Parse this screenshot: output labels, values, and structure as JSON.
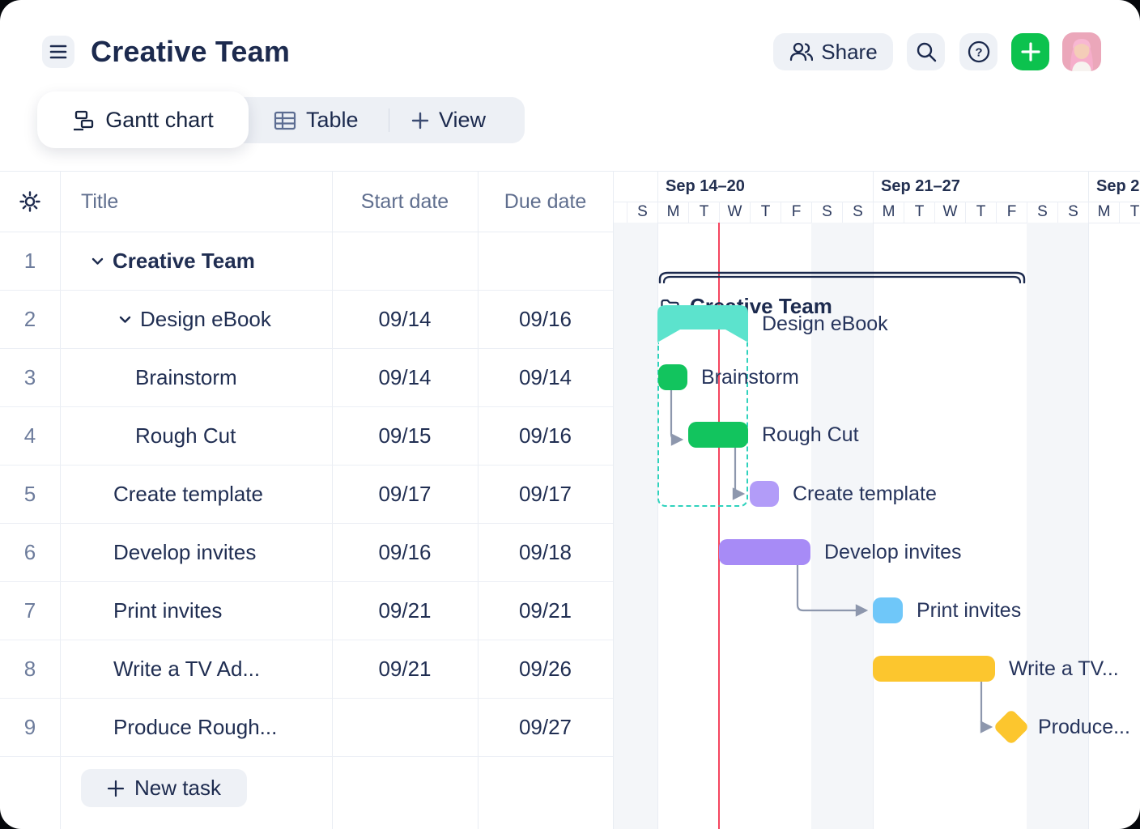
{
  "header": {
    "title": "Creative Team",
    "share_label": "Share"
  },
  "tabs": {
    "active_label": "Gantt chart",
    "table_label": "Table",
    "view_label": "View"
  },
  "table": {
    "columns": {
      "title": "Title",
      "start": "Start date",
      "due": "Due date"
    },
    "new_task_label": "New task",
    "rows": [
      {
        "num": "1",
        "title": "Creative Team",
        "indent": 0,
        "chevron": true,
        "bold": true,
        "start": "",
        "due": ""
      },
      {
        "num": "2",
        "title": "Design eBook",
        "indent": 1,
        "chevron": true,
        "bold": false,
        "start": "09/14",
        "due": "09/16"
      },
      {
        "num": "3",
        "title": "Brainstorm",
        "indent": 2,
        "chevron": false,
        "bold": false,
        "start": "09/14",
        "due": "09/14"
      },
      {
        "num": "4",
        "title": "Rough Cut",
        "indent": 2,
        "chevron": false,
        "bold": false,
        "start": "09/15",
        "due": "09/16"
      },
      {
        "num": "5",
        "title": "Create template",
        "indent": 1,
        "chevron": false,
        "bold": false,
        "start": "09/17",
        "due": "09/17"
      },
      {
        "num": "6",
        "title": "Develop invites",
        "indent": 1,
        "chevron": false,
        "bold": false,
        "start": "09/16",
        "due": "09/18"
      },
      {
        "num": "7",
        "title": "Print invites",
        "indent": 1,
        "chevron": false,
        "bold": false,
        "start": "09/21",
        "due": "09/21"
      },
      {
        "num": "8",
        "title": "Write a TV Ad...",
        "indent": 1,
        "chevron": false,
        "bold": false,
        "start": "09/21",
        "due": "09/26"
      },
      {
        "num": "9",
        "title": "Produce Rough...",
        "indent": 1,
        "chevron": false,
        "bold": false,
        "start": "",
        "due": "09/27"
      }
    ]
  },
  "gantt": {
    "weeks": [
      {
        "label": ""
      },
      {
        "label": "Sep 14–20"
      },
      {
        "label": "Sep 21–27"
      },
      {
        "label": "Sep 2"
      }
    ],
    "day_letters": [
      "S",
      "M",
      "T",
      "W",
      "T",
      "F",
      "S",
      "S",
      "M",
      "T",
      "W",
      "T",
      "F",
      "S",
      "S",
      "M",
      "T"
    ],
    "group_label": "Creative Team",
    "bars": [
      {
        "id": "design-ebook",
        "label": "Design eBook",
        "color": "#5ce3cd",
        "kind": "summary"
      },
      {
        "id": "brainstorm",
        "label": "Brainstorm",
        "color": "#12c45e",
        "kind": "task"
      },
      {
        "id": "rough-cut",
        "label": "Rough Cut",
        "color": "#12c45e",
        "kind": "task"
      },
      {
        "id": "create-template",
        "label": "Create template",
        "color": "#b29cf8",
        "kind": "task"
      },
      {
        "id": "develop-invites",
        "label": "Develop invites",
        "color": "#a78bf6",
        "kind": "task"
      },
      {
        "id": "print-invites",
        "label": "Print invites",
        "color": "#6fc7f9",
        "kind": "task"
      },
      {
        "id": "write-tv-ad",
        "label": "Write a TV...",
        "color": "#fcc62e",
        "kind": "task"
      },
      {
        "id": "produce-rough",
        "label": "Produce...",
        "color": "#fcc62e",
        "kind": "milestone"
      }
    ]
  },
  "colors": {
    "navy": "#1c2a4e",
    "slate": "#5f6e8e",
    "teal": "#5ce3cd",
    "teal_dashed": "#2fd2bd",
    "green": "#12c45e",
    "purple": "#a78bf6",
    "purple_light": "#b29cf8",
    "blue": "#6fc7f9",
    "yellow": "#fcc62e",
    "today_red": "#f5455f",
    "connector": "#8d97ad",
    "plus_green": "#0cc24e"
  }
}
